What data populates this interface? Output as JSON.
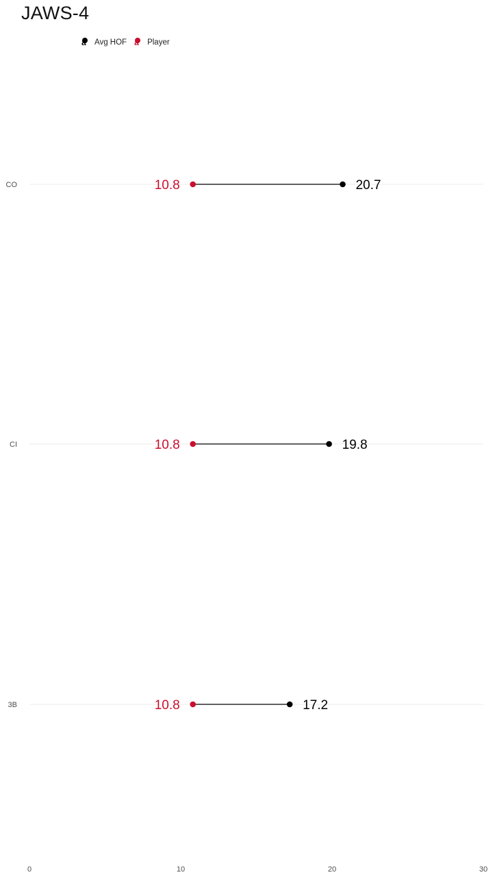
{
  "chart_data": {
    "type": "dumbbell",
    "title": "JAWS-4",
    "categories": [
      "CO",
      "CI",
      "3B"
    ],
    "series": [
      {
        "name": "Player",
        "color": "#c8102e",
        "values": [
          10.8,
          10.8,
          10.8
        ]
      },
      {
        "name": "Avg HOF",
        "color": "#000000",
        "values": [
          20.7,
          19.8,
          17.2
        ]
      }
    ],
    "xlim": [
      0,
      30
    ],
    "x_ticks": [
      0,
      10,
      20,
      30
    ],
    "grid": true,
    "legend_position": "top-left",
    "legend": [
      {
        "name": "Avg HOF",
        "color": "#000000",
        "key_glyph": "a"
      },
      {
        "name": "Player",
        "color": "#c8102e",
        "key_glyph": "a"
      }
    ]
  }
}
